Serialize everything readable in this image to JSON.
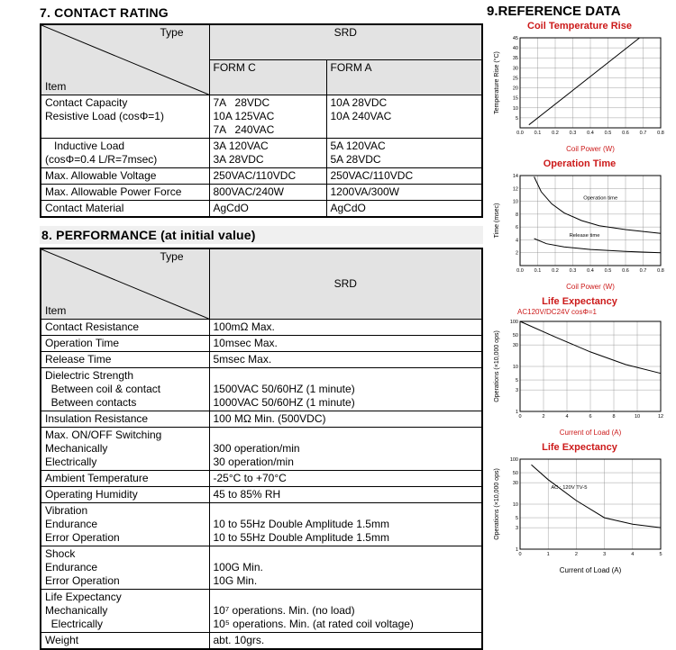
{
  "colors": {
    "accent_red": "#cc1a1a",
    "table_header_bg": "#e3e3e3",
    "line_color": "#000000"
  },
  "sections": {
    "contact_rating_title": "7. CONTACT RATING",
    "performance_title": "8. PERFORMANCE (at initial value)",
    "reference_title": "9.REFERENCE DATA"
  },
  "contact_rating": {
    "type_label": "Type",
    "item_label": "Item",
    "group_header": "SRD",
    "columns": [
      "FORM C",
      "FORM A"
    ],
    "rows": [
      {
        "item": "Contact Capacity\nResistive Load (cosΦ=1)",
        "form_c": "7A   28VDC\n10A 125VAC\n7A   240VAC",
        "form_a": "10A 28VDC\n10A 240VAC"
      },
      {
        "item": "   Inductive Load\n(cosΦ=0.4 L/R=7msec)",
        "form_c": "3A 120VAC\n3A 28VDC",
        "form_a": "5A 120VAC\n5A 28VDC"
      },
      {
        "item": "Max. Allowable Voltage",
        "form_c": "250VAC/110VDC",
        "form_a": "250VAC/110VDC"
      },
      {
        "item": "Max. Allowable Power Force",
        "form_c": "800VAC/240W",
        "form_a": "1200VA/300W"
      },
      {
        "item": "Contact Material",
        "form_c": "AgCdO",
        "form_a": "AgCdO"
      }
    ]
  },
  "performance": {
    "type_label": "Type",
    "item_label": "Item",
    "column_header": "SRD",
    "rows": [
      {
        "item": "Contact Resistance",
        "value": "100mΩ Max."
      },
      {
        "item": "Operation Time",
        "value": "10msec Max."
      },
      {
        "item": "Release Time",
        "value": "5msec Max."
      },
      {
        "item": "Dielectric Strength\n  Between coil & contact\n  Between contacts",
        "value": "\n1500VAC 50/60HZ (1 minute)\n1000VAC 50/60HZ (1 minute)"
      },
      {
        "item": "Insulation Resistance",
        "value": "100 MΩ Min. (500VDC)"
      },
      {
        "item": "Max. ON/OFF Switching\nMechanically\nElectrically",
        "value": "\n300 operation/min\n30 operation/min"
      },
      {
        "item": "Ambient Temperature",
        "value": "-25°C to +70°C"
      },
      {
        "item": "Operating Humidity",
        "value": "45 to 85% RH"
      },
      {
        "item": "Vibration\nEndurance\nError Operation",
        "value": "\n10 to 55Hz Double Amplitude 1.5mm\n10 to 55Hz Double Amplitude 1.5mm"
      },
      {
        "item": "Shock\nEndurance\nError Operation",
        "value": "\n100G Min.\n10G Min."
      },
      {
        "item": "Life Expectancy\nMechanically\n  Electrically",
        "value": "\n10⁷ operations. Min. (no load)\n10⁵ operations. Min. (at rated coil voltage)"
      },
      {
        "item": "Weight",
        "value": "abt. 10grs."
      }
    ]
  },
  "chart_data": [
    {
      "type": "line",
      "title": "Coil Temperature Rise",
      "xlabel": "Coil Power (W)",
      "xlabel_color": "#cc1a1a",
      "ylabel": "Temperature Rise (°C)",
      "xlim": [
        0,
        0.8
      ],
      "ylim": [
        0,
        45
      ],
      "y_scale": "linear",
      "grid": true,
      "legend": "none",
      "x_ticks": [
        0,
        0.1,
        0.2,
        0.3,
        0.4,
        0.5,
        0.6,
        0.7,
        0.8
      ],
      "x_tick_labels": [
        "0.0",
        "0.1",
        "0.2",
        "0.3",
        "0.4",
        "0.5",
        "0.6",
        "0.7",
        "0.8"
      ],
      "y_ticks": [
        5,
        10,
        15,
        20,
        25,
        30,
        35,
        40,
        45
      ],
      "series": [
        {
          "name": "temperature-rise",
          "points": [
            [
              0.05,
              1.5
            ],
            [
              0.68,
              45
            ]
          ]
        }
      ],
      "annotations": []
    },
    {
      "type": "line",
      "title": "Operation Time",
      "xlabel": "Coil Power (W)",
      "xlabel_color": "#cc1a1a",
      "ylabel": "Time (msec)",
      "xlim": [
        0,
        0.8
      ],
      "ylim": [
        0,
        14
      ],
      "y_scale": "linear",
      "grid": true,
      "legend": "inline-annotations",
      "x_ticks": [
        0,
        0.1,
        0.2,
        0.3,
        0.4,
        0.5,
        0.6,
        0.7,
        0.8
      ],
      "x_tick_labels": [
        "0.0",
        "0.1",
        "0.2",
        "0.3",
        "0.4",
        "0.5",
        "0.6",
        "0.7",
        "0.8"
      ],
      "y_ticks": [
        2,
        4,
        6,
        8,
        10,
        12,
        14
      ],
      "series": [
        {
          "name": "operation-time",
          "points": [
            [
              0.08,
              13.8
            ],
            [
              0.12,
              11.5
            ],
            [
              0.18,
              9.6
            ],
            [
              0.25,
              8.2
            ],
            [
              0.35,
              7.0
            ],
            [
              0.45,
              6.2
            ],
            [
              0.6,
              5.6
            ],
            [
              0.8,
              5.0
            ]
          ]
        },
        {
          "name": "release-time",
          "points": [
            [
              0.08,
              4.2
            ],
            [
              0.15,
              3.4
            ],
            [
              0.25,
              2.9
            ],
            [
              0.4,
              2.5
            ],
            [
              0.6,
              2.2
            ],
            [
              0.8,
              2.0
            ]
          ]
        }
      ],
      "annotations": [
        {
          "text": "Operation time",
          "x": 0.36,
          "y": 10.3,
          "color": "#000000"
        },
        {
          "text": "Release time",
          "x": 0.28,
          "y": 4.5,
          "color": "#000000"
        }
      ]
    },
    {
      "type": "line",
      "title": "Life Expectancy",
      "subtitle": "AC120V/DC24V cosΦ=1",
      "xlabel": "Current of Load (A)",
      "xlabel_color": "#cc1a1a",
      "ylabel": "Operations (×10,000 ops)",
      "xlim": [
        0,
        12
      ],
      "ylim": [
        1,
        100
      ],
      "y_scale": "log",
      "grid": true,
      "legend": "none",
      "x_ticks": [
        0,
        2,
        4,
        6,
        8,
        10,
        12
      ],
      "x_tick_labels": [
        "0",
        "2",
        "4",
        "6",
        "8",
        "10",
        "12"
      ],
      "y_ticks": [
        1,
        3,
        5,
        10,
        30,
        50,
        100
      ],
      "series": [
        {
          "name": "life-expectancy-resistive",
          "points": [
            [
              0,
              100
            ],
            [
              3,
              45
            ],
            [
              6,
              21
            ],
            [
              9,
              11
            ],
            [
              12,
              7
            ]
          ]
        }
      ],
      "annotations": []
    },
    {
      "type": "line",
      "title": "Life Expectancy",
      "subtitle": "",
      "xlabel": "Current of Load (A)",
      "xlabel_color": "#000000",
      "ylabel": "Operations (×10,000 ops)",
      "xlim": [
        0,
        5
      ],
      "ylim": [
        1,
        100
      ],
      "y_scale": "log",
      "grid": true,
      "legend": "inline-annotations",
      "x_ticks": [
        0,
        1,
        2,
        3,
        4,
        5
      ],
      "x_tick_labels": [
        "0",
        "1",
        "2",
        "3",
        "4",
        "5"
      ],
      "y_ticks": [
        1,
        3,
        5,
        10,
        30,
        50,
        100
      ],
      "series": [
        {
          "name": "life-expectancy-tv5",
          "points": [
            [
              0.4,
              75
            ],
            [
              1,
              35
            ],
            [
              2,
              12
            ],
            [
              3,
              5
            ],
            [
              4,
              3.6
            ],
            [
              5,
              3
            ]
          ]
        }
      ],
      "annotations": [
        {
          "text": "AC : 120V TV-5",
          "x": 1.1,
          "y": 22,
          "color": "#000000"
        }
      ]
    }
  ]
}
